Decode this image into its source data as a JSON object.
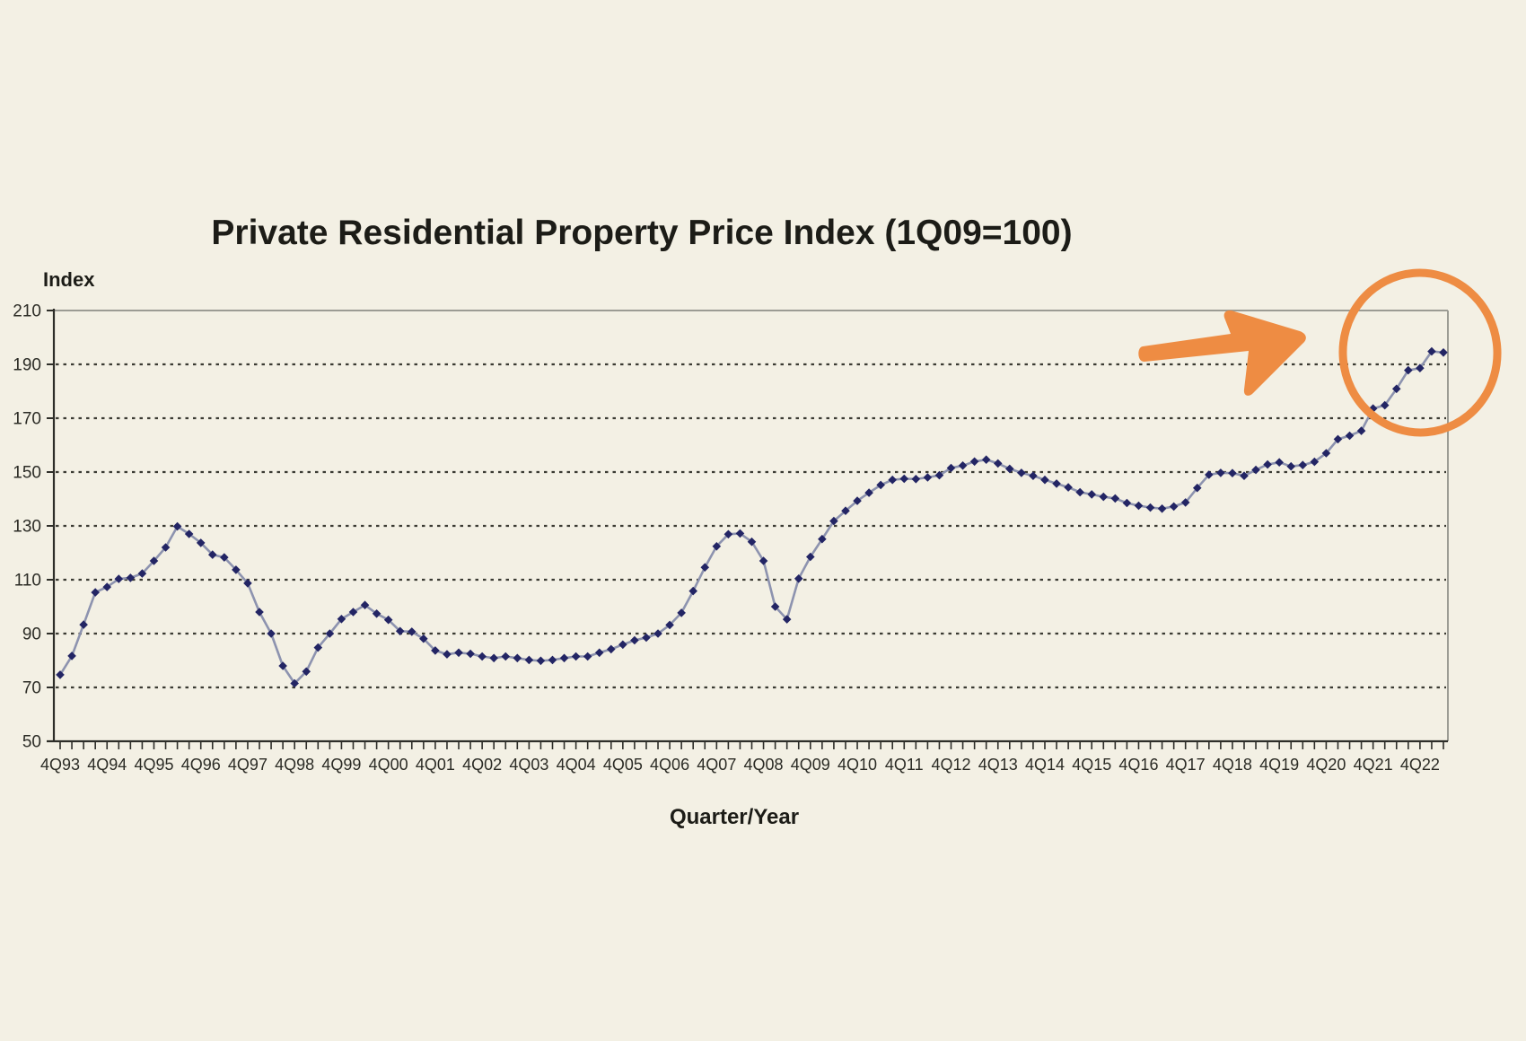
{
  "background_color": "#f3f0e4",
  "chart_data": {
    "type": "line",
    "title": "Private Residential Property Price Index (1Q09=100)",
    "ylabel": "Index",
    "xlabel": "Quarter/Year",
    "ylim": [
      50,
      210
    ],
    "y_ticks": [
      210,
      190,
      170,
      150,
      130,
      110,
      90,
      70,
      50
    ],
    "grid": "horizontal dashed gridlines at every y tick except top and bottom",
    "legend": "none",
    "frequency": "quarterly",
    "start_quarter": "4Q93",
    "end_quarter": "2Q23",
    "minor_ticks_per_label": 4,
    "x_tick_labels": [
      "4Q93",
      "4Q94",
      "4Q95",
      "4Q96",
      "4Q97",
      "4Q98",
      "4Q99",
      "4Q00",
      "4Q01",
      "4Q02",
      "4Q03",
      "4Q04",
      "4Q05",
      "4Q06",
      "4Q07",
      "4Q08",
      "4Q09",
      "4Q10",
      "4Q11",
      "4Q12",
      "4Q13",
      "4Q14",
      "4Q15",
      "4Q16",
      "4Q17",
      "4Q18",
      "4Q19",
      "4Q20",
      "4Q21",
      "4Q22"
    ],
    "series": [
      {
        "name": "Private Residential Property Price Index",
        "marker": "diamond",
        "line_color": "#8d93af",
        "marker_color": "#232564",
        "values": [
          74.7,
          81.7,
          93.3,
          105.3,
          107.3,
          110.3,
          110.7,
          112.3,
          117.0,
          122.0,
          129.8,
          127.0,
          123.7,
          119.3,
          118.3,
          113.7,
          108.7,
          98.0,
          90.0,
          78.0,
          71.5,
          75.9,
          84.8,
          90.0,
          95.4,
          98.0,
          100.6,
          97.4,
          95.1,
          90.9,
          90.7,
          88.1,
          83.7,
          82.3,
          82.9,
          82.5,
          81.5,
          80.9,
          81.5,
          80.9,
          80.2,
          79.9,
          80.2,
          80.9,
          81.5,
          81.5,
          82.9,
          84.2,
          85.9,
          87.5,
          88.5,
          90.0,
          93.2,
          97.7,
          105.8,
          114.6,
          122.4,
          126.9,
          127.2,
          124.1,
          117.0,
          100.0,
          95.3,
          110.4,
          118.5,
          125.1,
          131.8,
          135.6,
          139.3,
          142.3,
          145.2,
          147.1,
          147.5,
          147.4,
          148.0,
          148.8,
          151.5,
          152.4,
          153.9,
          154.6,
          153.2,
          151.2,
          149.7,
          148.6,
          147.1,
          145.7,
          144.3,
          142.5,
          141.7,
          140.8,
          140.2,
          138.5,
          137.5,
          136.8,
          136.4,
          137.2,
          138.7,
          144.1,
          149.0,
          149.7,
          149.6,
          148.6,
          150.8,
          152.8,
          153.6,
          152.1,
          152.6,
          153.8,
          157.0,
          162.2,
          163.5,
          165.3,
          173.6,
          174.8,
          180.9,
          187.8,
          188.6,
          194.8,
          194.4
        ]
      }
    ],
    "annotation": {
      "description": "hand-drawn orange arrow pointing right at a circle highlighting the latest data points",
      "color": "#ee8c43"
    },
    "axis_color": "#2e2e29",
    "border_color": "#9c9c94",
    "grid_color": "#3b3b33",
    "tick_label_color": "#2b2b25"
  }
}
